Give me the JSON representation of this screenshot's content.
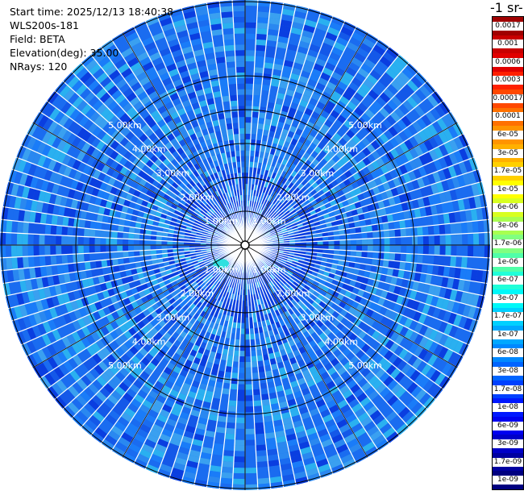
{
  "info": {
    "start_time": "Start time: 2025/12/13 18:40:38",
    "instrument": "WLS200s-181",
    "field": "Field: BETA",
    "elevation": "Elevation(deg): 35.00",
    "nrays": "NRays: 120"
  },
  "colorbar": {
    "title": "-1 sr-",
    "entries": [
      {
        "label": "0.0017",
        "color": "#a00000"
      },
      {
        "label": "0.001",
        "color": "#c80000"
      },
      {
        "label": "0.0006",
        "color": "#e00000"
      },
      {
        "label": "0.0003",
        "color": "#ff2000"
      },
      {
        "label": "0.00017",
        "color": "#ff4800"
      },
      {
        "label": "0.0001",
        "color": "#ff7000"
      },
      {
        "label": "6e-05",
        "color": "#ff9400"
      },
      {
        "label": "3e-05",
        "color": "#ffb000"
      },
      {
        "label": "1.7e-05",
        "color": "#ffd000"
      },
      {
        "label": "1e-05",
        "color": "#ffff00"
      },
      {
        "label": "6e-06",
        "color": "#d8ff20"
      },
      {
        "label": "3e-06",
        "color": "#a8ff50"
      },
      {
        "label": "1.7e-06",
        "color": "#80ff80"
      },
      {
        "label": "1e-06",
        "color": "#50ffa8"
      },
      {
        "label": "6e-07",
        "color": "#20ffd8"
      },
      {
        "label": "3e-07",
        "color": "#00f8f8"
      },
      {
        "label": "1.7e-07",
        "color": "#00d0ff"
      },
      {
        "label": "1e-07",
        "color": "#00a8ff"
      },
      {
        "label": "6e-08",
        "color": "#0088ff"
      },
      {
        "label": "3e-08",
        "color": "#0064ff"
      },
      {
        "label": "1.7e-08",
        "color": "#0040ff"
      },
      {
        "label": "1e-08",
        "color": "#0018ff"
      },
      {
        "label": "6e-09",
        "color": "#0000f0"
      },
      {
        "label": "3e-09",
        "color": "#0000c8"
      },
      {
        "label": "1.7e-09",
        "color": "#0000a0"
      },
      {
        "label": "1e-09",
        "color": "#000080"
      }
    ]
  },
  "range_rings": {
    "labels": [
      "1.00km",
      "2.00km",
      "3.00km",
      "4.00km",
      "5.00km"
    ],
    "values_km": [
      1,
      2,
      3,
      4,
      5
    ]
  },
  "colors": {
    "field_base": "#1a6cf0",
    "field_dark": "#0a3ee0",
    "field_light": "#2aa8f0",
    "ring_line": "#000000"
  }
}
